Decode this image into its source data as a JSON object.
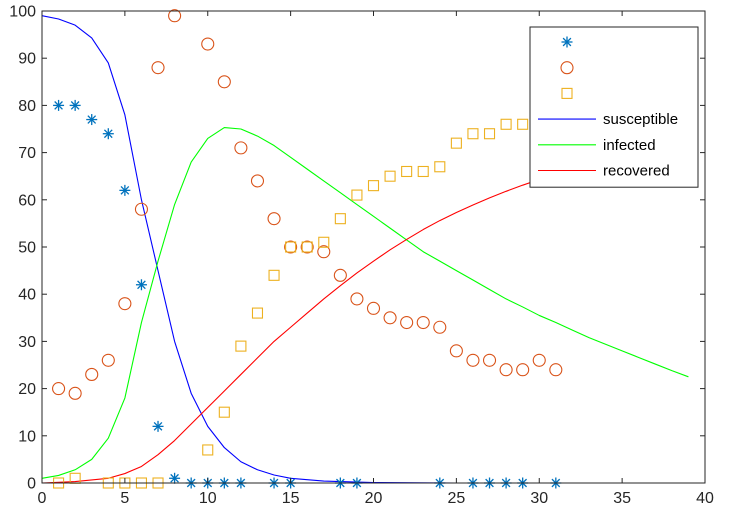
{
  "chart_data": {
    "type": "line",
    "title": "",
    "xlabel": "",
    "ylabel": "",
    "xlim": [
      0,
      40
    ],
    "ylim": [
      0,
      100
    ],
    "x_ticks": [
      0,
      5,
      10,
      15,
      20,
      25,
      30,
      35,
      40
    ],
    "y_ticks": [
      0,
      10,
      20,
      30,
      40,
      50,
      60,
      70,
      80,
      90,
      100
    ],
    "grid": false,
    "legend_position": "top-right",
    "scatter_series": [
      {
        "marker": "asterisk",
        "color": "#0072BD",
        "points": [
          [
            1,
            80
          ],
          [
            2,
            80
          ],
          [
            3,
            77
          ],
          [
            4,
            74
          ],
          [
            5,
            62
          ],
          [
            6,
            42
          ],
          [
            7,
            12
          ],
          [
            8,
            1
          ],
          [
            9,
            0
          ],
          [
            10,
            0
          ],
          [
            11,
            0
          ],
          [
            12,
            0
          ],
          [
            14,
            0
          ],
          [
            15,
            0
          ],
          [
            18,
            0
          ],
          [
            19,
            0
          ],
          [
            24,
            0
          ],
          [
            26,
            0
          ],
          [
            27,
            0
          ],
          [
            28,
            0
          ],
          [
            29,
            0
          ],
          [
            31,
            0
          ]
        ]
      },
      {
        "marker": "circle",
        "color": "#D95319",
        "points": [
          [
            1,
            20
          ],
          [
            2,
            19
          ],
          [
            3,
            23
          ],
          [
            4,
            26
          ],
          [
            5,
            38
          ],
          [
            6,
            58
          ],
          [
            7,
            88
          ],
          [
            8,
            99
          ],
          [
            10,
            93
          ],
          [
            11,
            85
          ],
          [
            12,
            71
          ],
          [
            13,
            64
          ],
          [
            14,
            56
          ],
          [
            15,
            50
          ],
          [
            16,
            50
          ],
          [
            17,
            49
          ],
          [
            18,
            44
          ],
          [
            19,
            39
          ],
          [
            20,
            37
          ],
          [
            21,
            35
          ],
          [
            22,
            34
          ],
          [
            23,
            34
          ],
          [
            24,
            33
          ],
          [
            25,
            28
          ],
          [
            26,
            26
          ],
          [
            27,
            26
          ],
          [
            28,
            24
          ],
          [
            29,
            24
          ],
          [
            30,
            26
          ],
          [
            31,
            24
          ]
        ]
      },
      {
        "marker": "square",
        "color": "#EDB120",
        "points": [
          [
            1,
            0
          ],
          [
            2,
            1
          ],
          [
            4,
            0
          ],
          [
            5,
            0
          ],
          [
            6,
            0
          ],
          [
            7,
            0
          ],
          [
            10,
            7
          ],
          [
            11,
            15
          ],
          [
            12,
            29
          ],
          [
            13,
            36
          ],
          [
            14,
            44
          ],
          [
            15,
            50
          ],
          [
            16,
            50
          ],
          [
            17,
            51
          ],
          [
            18,
            56
          ],
          [
            19,
            61
          ],
          [
            20,
            63
          ],
          [
            21,
            65
          ],
          [
            22,
            66
          ],
          [
            23,
            66
          ],
          [
            24,
            67
          ],
          [
            25,
            72
          ],
          [
            26,
            74
          ],
          [
            27,
            74
          ],
          [
            28,
            76
          ],
          [
            29,
            76
          ],
          [
            30,
            74
          ],
          [
            31,
            76
          ]
        ]
      }
    ],
    "line_series": [
      {
        "name": "susceptible",
        "color": "#0000FF",
        "points": [
          [
            0,
            99
          ],
          [
            1,
            98.3
          ],
          [
            2,
            97
          ],
          [
            3,
            94.3
          ],
          [
            4,
            89
          ],
          [
            5,
            78
          ],
          [
            6,
            60
          ],
          [
            7,
            45
          ],
          [
            8,
            30
          ],
          [
            9,
            19
          ],
          [
            10,
            12
          ],
          [
            11,
            7.5
          ],
          [
            12,
            4.5
          ],
          [
            13,
            2.8
          ],
          [
            14,
            1.7
          ],
          [
            15,
            1
          ],
          [
            17,
            0.4
          ],
          [
            20,
            0.1
          ],
          [
            25,
            0
          ],
          [
            30,
            0
          ],
          [
            35,
            0
          ],
          [
            39,
            0
          ]
        ]
      },
      {
        "name": "infected",
        "color": "#00FF00",
        "points": [
          [
            0,
            1
          ],
          [
            1,
            1.6
          ],
          [
            2,
            2.8
          ],
          [
            3,
            5
          ],
          [
            4,
            9.5
          ],
          [
            5,
            18
          ],
          [
            6,
            34
          ],
          [
            7,
            47
          ],
          [
            8,
            59
          ],
          [
            9,
            68
          ],
          [
            10,
            73
          ],
          [
            11,
            75.3
          ],
          [
            12,
            75
          ],
          [
            13,
            73.5
          ],
          [
            14,
            71.5
          ],
          [
            15,
            69
          ],
          [
            16,
            66.5
          ],
          [
            17,
            64
          ],
          [
            18,
            61.5
          ],
          [
            19,
            59
          ],
          [
            20,
            56.5
          ],
          [
            21,
            54
          ],
          [
            22,
            51.5
          ],
          [
            23,
            49
          ],
          [
            24,
            47
          ],
          [
            25,
            45
          ],
          [
            26,
            43
          ],
          [
            27,
            41
          ],
          [
            28,
            39
          ],
          [
            29,
            37.3
          ],
          [
            30,
            35.5
          ],
          [
            31,
            34
          ],
          [
            32,
            32.4
          ],
          [
            33,
            30.8
          ],
          [
            34,
            29.4
          ],
          [
            35,
            28
          ],
          [
            36,
            26.6
          ],
          [
            37,
            25.2
          ],
          [
            38,
            23.8
          ],
          [
            39,
            22.5
          ]
        ]
      },
      {
        "name": "recovered",
        "color": "#FF0000",
        "points": [
          [
            0,
            0
          ],
          [
            2,
            0.3
          ],
          [
            4,
            1
          ],
          [
            5,
            2
          ],
          [
            6,
            3.5
          ],
          [
            7,
            6
          ],
          [
            8,
            9
          ],
          [
            9,
            12.5
          ],
          [
            10,
            16
          ],
          [
            11,
            19.5
          ],
          [
            12,
            23
          ],
          [
            13,
            26.5
          ],
          [
            14,
            30
          ],
          [
            15,
            33
          ],
          [
            16,
            36
          ],
          [
            17,
            39
          ],
          [
            18,
            41.8
          ],
          [
            19,
            44.5
          ],
          [
            20,
            47
          ],
          [
            21,
            49.4
          ],
          [
            22,
            51.6
          ],
          [
            23,
            53.7
          ],
          [
            24,
            55.6
          ],
          [
            25,
            57.3
          ],
          [
            26,
            58.9
          ],
          [
            27,
            60.4
          ],
          [
            28,
            61.8
          ],
          [
            29,
            63.1
          ],
          [
            30,
            64.3
          ],
          [
            31,
            65.5
          ],
          [
            32,
            66.6
          ],
          [
            33,
            67.7
          ],
          [
            34,
            68.7
          ],
          [
            35,
            69.7
          ],
          [
            36,
            70.6
          ],
          [
            37,
            71.5
          ],
          [
            38,
            72.4
          ],
          [
            39,
            73.2
          ]
        ]
      }
    ],
    "legend_entries": [
      {
        "label": "",
        "marker": "asterisk",
        "color": "#0072BD"
      },
      {
        "label": "",
        "marker": "circle",
        "color": "#D95319"
      },
      {
        "label": "",
        "marker": "square",
        "color": "#EDB120"
      },
      {
        "label": "susceptible",
        "line": true,
        "color": "#0000FF"
      },
      {
        "label": "infected",
        "line": true,
        "color": "#00FF00"
      },
      {
        "label": "recovered",
        "line": true,
        "color": "#FF0000"
      }
    ]
  }
}
